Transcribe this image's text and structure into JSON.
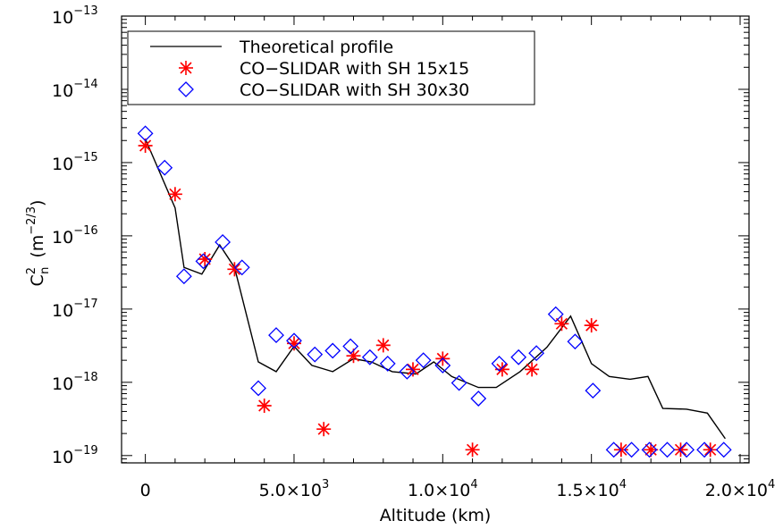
{
  "chart_data": {
    "type": "scatter",
    "title": "",
    "xlabel": "Altitude (km)",
    "ylabel": {
      "base": "C",
      "sub": "n",
      "sup": "2",
      "unit_open": "(m",
      "unit_exp": "−2/3",
      "unit_close": ")"
    },
    "xlim": [
      -800,
      20300
    ],
    "ylim_log10": [
      -19.1,
      -13
    ],
    "yscale": "log",
    "x_ticks": [
      {
        "value": 0,
        "label": "0",
        "exp": ""
      },
      {
        "value": 5000,
        "label": "5.0×10",
        "exp": "3"
      },
      {
        "value": 10000,
        "label": "1.0×10",
        "exp": "4"
      },
      {
        "value": 15000,
        "label": "1.5×10",
        "exp": "4"
      },
      {
        "value": 20000,
        "label": "2.0×10",
        "exp": "4"
      }
    ],
    "y_ticks": [
      {
        "value": 1e-19,
        "label": "10",
        "exp": "−19"
      },
      {
        "value": 1e-18,
        "label": "10",
        "exp": "−18"
      },
      {
        "value": 1e-17,
        "label": "10",
        "exp": "−17"
      },
      {
        "value": 1e-16,
        "label": "10",
        "exp": "−16"
      },
      {
        "value": 1e-15,
        "label": "10",
        "exp": "−15"
      },
      {
        "value": 1e-14,
        "label": "10",
        "exp": "−14"
      },
      {
        "value": 1e-13,
        "label": "10",
        "exp": "−13"
      }
    ],
    "legend_position": "top-left",
    "series": [
      {
        "name": "Theoretical profile",
        "style": "line",
        "color": "#000000",
        "x": [
          0,
          1000,
          1300,
          1900,
          2500,
          3000,
          3800,
          4400,
          5000,
          5600,
          6300,
          7000,
          7600,
          8300,
          9100,
          9700,
          10300,
          11200,
          11800,
          12600,
          13500,
          14300,
          15000,
          15600,
          16300,
          16900,
          17400,
          18200,
          18900,
          19500
        ],
        "y": [
          2.1e-15,
          2.4e-16,
          3.7e-17,
          3e-17,
          7.5e-17,
          3.7e-17,
          1.9e-18,
          1.4e-18,
          3.1e-18,
          1.7e-18,
          1.4e-18,
          2.1e-18,
          1.9e-18,
          1.4e-18,
          1.3e-18,
          1.9e-18,
          1.2e-18,
          8.5e-19,
          8.5e-19,
          1.4e-18,
          3e-18,
          8e-18,
          1.8e-18,
          1.2e-18,
          1.1e-18,
          1.2e-18,
          4.4e-19,
          4.3e-19,
          3.8e-19,
          1.7e-19
        ]
      },
      {
        "name": "CO−SLIDAR with SH 15x15",
        "style": "asterisk",
        "color": "#ff0000",
        "x": [
          0,
          1000,
          2000,
          3000,
          4000,
          5000,
          6000,
          7000,
          8000,
          9000,
          10000,
          11000,
          12000,
          13000,
          14000,
          15000,
          16000,
          17000,
          18000,
          19000
        ],
        "y": [
          1.7e-15,
          3.7e-16,
          4.8e-17,
          3.5e-17,
          4.8e-19,
          3.4e-18,
          2.3e-19,
          2.3e-18,
          3.2e-18,
          1.5e-18,
          2.1e-18,
          1.2e-19,
          1.5e-18,
          1.5e-18,
          6.3e-18,
          6e-18,
          1.2e-19,
          1.2e-19,
          1.2e-19,
          1.2e-19
        ]
      },
      {
        "name": "CO−SLIDAR with SH 30x30",
        "style": "diamond",
        "color": "#0000ff",
        "x": [
          0,
          650,
          1300,
          1950,
          2600,
          3250,
          3800,
          4400,
          5000,
          5700,
          6300,
          6900,
          7550,
          8150,
          8800,
          9350,
          10000,
          10550,
          11200,
          11900,
          12550,
          13150,
          13800,
          14450,
          15050,
          15750,
          16350,
          16950,
          17550,
          18200,
          18800,
          19450
        ],
        "y": [
          2.5e-15,
          8.5e-16,
          2.8e-17,
          4.5e-17,
          8.2e-17,
          3.7e-17,
          8.3e-19,
          4.4e-18,
          3.7e-18,
          2.4e-18,
          2.7e-18,
          3.1e-18,
          2.2e-18,
          1.8e-18,
          1.4e-18,
          2e-18,
          1.7e-18,
          9.8e-19,
          6e-19,
          1.8e-18,
          2.2e-18,
          2.5e-18,
          8.5e-18,
          3.6e-18,
          7.7e-19,
          1.2e-19,
          1.2e-19,
          1.2e-19,
          1.2e-19,
          1.2e-19,
          1.2e-19,
          1.2e-19
        ]
      }
    ]
  }
}
